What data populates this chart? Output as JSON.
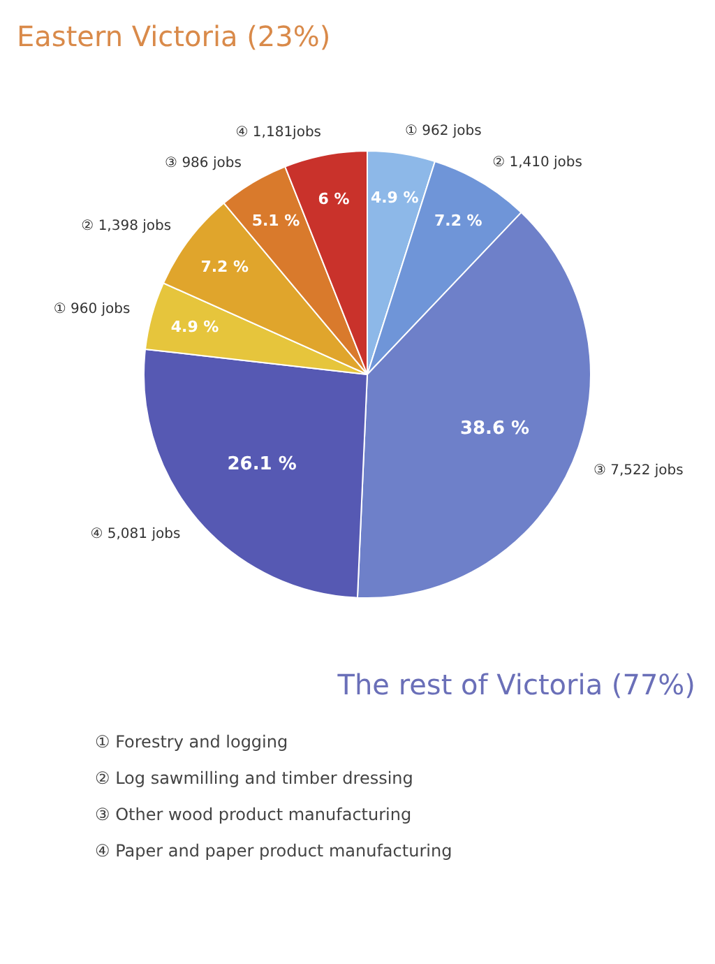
{
  "chart_data": {
    "type": "pie",
    "title": "Eastern Victoria (23%)",
    "subtitle": "The rest of Victoria (77%)",
    "categories": [
      "① 962 jobs",
      "② 1,410 jobs",
      "③ 7,522 jobs",
      "④ 5,081 jobs",
      "① 960 jobs",
      "② 1,398 jobs",
      "③ 986 jobs",
      "④ 1,181jobs"
    ],
    "values": [
      4.9,
      7.2,
      38.6,
      26.1,
      4.9,
      7.2,
      5.1,
      6
    ],
    "value_labels": [
      "4.9 %",
      "7.2 %",
      "38.6 %",
      "26.1 %",
      "4.9 %",
      "7.2 %",
      "5.1 %",
      "6 %"
    ],
    "colors": [
      "#8db8e8",
      "#6f95d8",
      "#6e80c9",
      "#5659b3",
      "#e6c53c",
      "#e0a52c",
      "#d97a2c",
      "#c9322b"
    ],
    "annotations": [
      "① Forestry and logging",
      "② Log sawmilling and timber dressing",
      "③ Other wood product manufacturing",
      "④ Paper and paper product manufacturing"
    ]
  }
}
